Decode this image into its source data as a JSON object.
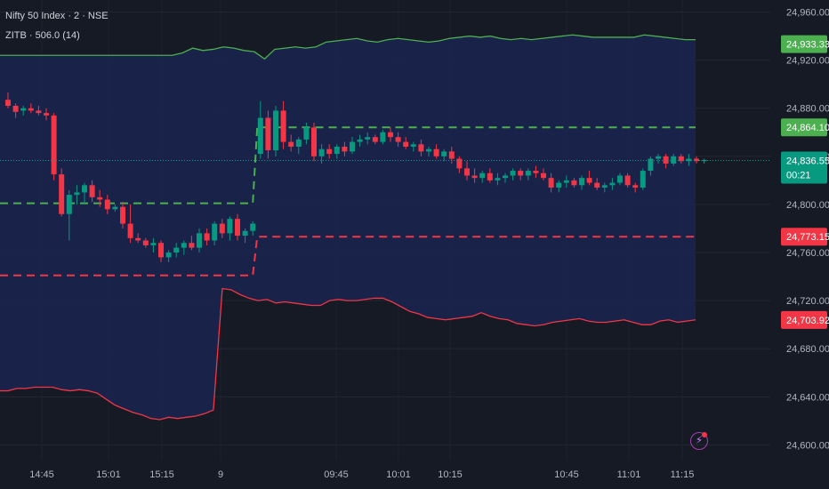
{
  "header": {
    "symbol": "Nifty 50 Index · 2 · NSE",
    "indicator": "ZITB · 506.0 (14)"
  },
  "colors": {
    "background": "#161a25",
    "band_fill": "#1a2550",
    "bull": "#089981",
    "bear": "#f23645",
    "upper_band": "#4caf50",
    "lower_band": "#f23645",
    "mid_line": "#4caf50",
    "last_price": "#089981",
    "axis_text": "#b2b5be"
  },
  "icons": {
    "alert": "lightning-icon"
  },
  "chart_data": {
    "type": "candlestick",
    "x_ticks": [
      "14:45",
      "15:01",
      "15:15",
      "9",
      "09:45",
      "10:01",
      "10:15",
      "10:45",
      "11:01",
      "11:15"
    ],
    "y_ticks": [
      24600,
      24640,
      24680,
      24720,
      24760,
      24800,
      24840,
      24880,
      24920,
      24960
    ],
    "y_tick_labels": [
      "24,600.00",
      "24,640.00",
      "24,680.00",
      "24,720.00",
      "24,760.00",
      "24,800.00",
      "24,840.00",
      "24,880.00",
      "24,920.00",
      "24,960.00"
    ],
    "ylim": [
      24587,
      24970
    ],
    "price_labels": [
      {
        "text": "24,933.33",
        "value": 24933.33,
        "kind": "upper"
      },
      {
        "text": "24,864.10",
        "value": 24864.1,
        "kind": "upper"
      },
      {
        "text": "24,836.55",
        "value": 24836.55,
        "kind": "last",
        "countdown": "00:21"
      },
      {
        "text": "24,773.15",
        "value": 24773.15,
        "kind": "lower"
      },
      {
        "text": "24,703.92",
        "value": 24703.92,
        "kind": "lower"
      }
    ],
    "candles": [
      [
        24887,
        24893,
        24880,
        24882
      ],
      [
        24882,
        24884,
        24872,
        24877
      ],
      [
        24878,
        24882,
        24874,
        24880
      ],
      [
        24880,
        24884,
        24876,
        24878
      ],
      [
        24878,
        24882,
        24874,
        24876
      ],
      [
        24876,
        24880,
        24870,
        24874
      ],
      [
        24874,
        24876,
        24820,
        24825
      ],
      [
        24825,
        24830,
        24790,
        24792
      ],
      [
        24792,
        24812,
        24770,
        24808
      ],
      [
        24808,
        24816,
        24800,
        24810
      ],
      [
        24810,
        24818,
        24800,
        24816
      ],
      [
        24816,
        24820,
        24802,
        24806
      ],
      [
        24806,
        24812,
        24798,
        24804
      ],
      [
        24804,
        24808,
        24792,
        24796
      ],
      [
        24796,
        24800,
        24794,
        24798
      ],
      [
        24798,
        24802,
        24780,
        24784
      ],
      [
        24784,
        24800,
        24768,
        24772
      ],
      [
        24772,
        24776,
        24768,
        24770
      ],
      [
        24770,
        24772,
        24764,
        24766
      ],
      [
        24766,
        24772,
        24760,
        24768
      ],
      [
        24768,
        24770,
        24752,
        24756
      ],
      [
        24756,
        24762,
        24752,
        24760
      ],
      [
        24760,
        24768,
        24756,
        24764
      ],
      [
        24764,
        24770,
        24758,
        24768
      ],
      [
        24768,
        24774,
        24762,
        24764
      ],
      [
        24764,
        24780,
        24760,
        24776
      ],
      [
        24776,
        24780,
        24766,
        24770
      ],
      [
        24770,
        24786,
        24766,
        24784
      ],
      [
        24784,
        24788,
        24772,
        24776
      ],
      [
        24776,
        24790,
        24770,
        24788
      ],
      [
        24788,
        24792,
        24770,
        24774
      ],
      [
        24774,
        24780,
        24768,
        24778
      ],
      [
        24778,
        24786,
        24774,
        24784
      ],
      [
        24842,
        24886,
        24838,
        24872
      ],
      [
        24872,
        24878,
        24838,
        24845
      ],
      [
        24845,
        24882,
        24840,
        24878
      ],
      [
        24878,
        24886,
        24846,
        24852
      ],
      [
        24852,
        24858,
        24844,
        24848
      ],
      [
        24848,
        24856,
        24842,
        24854
      ],
      [
        24854,
        24868,
        24850,
        24864
      ],
      [
        24864,
        24868,
        24836,
        24840
      ],
      [
        24840,
        24850,
        24834,
        24846
      ],
      [
        24846,
        24850,
        24838,
        24842
      ],
      [
        24842,
        24850,
        24838,
        24848
      ],
      [
        24848,
        24852,
        24840,
        24844
      ],
      [
        24844,
        24856,
        24842,
        24852
      ],
      [
        24852,
        24858,
        24848,
        24854
      ],
      [
        24854,
        24860,
        24850,
        24856
      ],
      [
        24856,
        24858,
        24850,
        24852
      ],
      [
        24852,
        24862,
        24850,
        24860
      ],
      [
        24860,
        24864,
        24852,
        24856
      ],
      [
        24856,
        24860,
        24848,
        24852
      ],
      [
        24852,
        24856,
        24846,
        24848
      ],
      [
        24848,
        24852,
        24844,
        24850
      ],
      [
        24850,
        24854,
        24840,
        24844
      ],
      [
        24844,
        24848,
        24840,
        24846
      ],
      [
        24846,
        24850,
        24838,
        24840
      ],
      [
        24840,
        24846,
        24836,
        24844
      ],
      [
        24844,
        24848,
        24834,
        24838
      ],
      [
        24838,
        24840,
        24826,
        24830
      ],
      [
        24830,
        24836,
        24820,
        24824
      ],
      [
        24824,
        24830,
        24818,
        24822
      ],
      [
        24822,
        24828,
        24818,
        24826
      ],
      [
        24826,
        24830,
        24818,
        24820
      ],
      [
        24820,
        24826,
        24816,
        24822
      ],
      [
        24822,
        24826,
        24818,
        24824
      ],
      [
        24824,
        24830,
        24820,
        24828
      ],
      [
        24828,
        24830,
        24820,
        24824
      ],
      [
        24824,
        24830,
        24820,
        24828
      ],
      [
        24828,
        24832,
        24822,
        24826
      ],
      [
        24826,
        24830,
        24820,
        24822
      ],
      [
        24822,
        24826,
        24810,
        24814
      ],
      [
        24814,
        24820,
        24810,
        24818
      ],
      [
        24818,
        24824,
        24814,
        24820
      ],
      [
        24820,
        24822,
        24814,
        24816
      ],
      [
        24816,
        24824,
        24812,
        24822
      ],
      [
        24822,
        24828,
        24816,
        24818
      ],
      [
        24818,
        24822,
        24812,
        24814
      ],
      [
        24814,
        24818,
        24810,
        24816
      ],
      [
        24816,
        24822,
        24812,
        24818
      ],
      [
        24818,
        24826,
        24816,
        24824
      ],
      [
        24824,
        24826,
        24814,
        24816
      ],
      [
        24816,
        24818,
        24810,
        24814
      ],
      [
        24814,
        24830,
        24812,
        24828
      ],
      [
        24828,
        24840,
        24824,
        24838
      ],
      [
        24838,
        24842,
        24834,
        24840
      ],
      [
        24840,
        24842,
        24830,
        24834
      ],
      [
        24834,
        24842,
        24832,
        24840
      ],
      [
        24840,
        24842,
        24834,
        24836
      ],
      [
        24836,
        24842,
        24832,
        24838
      ],
      [
        24838,
        24840,
        24834,
        24836
      ],
      [
        24836,
        24838,
        24834,
        24837
      ]
    ],
    "upper_band": [
      24924,
      24924,
      24924,
      24924,
      24924,
      24924,
      24924,
      24924,
      24924,
      24924,
      24924,
      24924,
      24924,
      24924,
      24924,
      24924,
      24924,
      24926,
      24930,
      24928,
      24929,
      24931,
      24930,
      24928,
      24927,
      24921,
      24929,
      24930,
      24931,
      24930,
      24931,
      24935,
      24936,
      24937,
      24938,
      24936,
      24935,
      24937,
      24938,
      24937,
      24936,
      24935,
      24936,
      24938,
      24939,
      24940,
      24939,
      24940,
      24938,
      24937,
      24938,
      24937,
      24938,
      24939,
      24940,
      24941,
      24940,
      24939,
      24939,
      24939,
      24939,
      24939,
      24941,
      24940,
      24939,
      24938,
      24937,
      24937
    ],
    "lower_band": [
      24645,
      24647,
      24647,
      24648,
      24648,
      24648,
      24646,
      24645,
      24646,
      24645,
      24643,
      24638,
      24633,
      24630,
      24627,
      24625,
      24622,
      24621,
      24623,
      24622,
      24623,
      24624,
      24626,
      24629,
      24730,
      24729,
      24725,
      24722,
      24720,
      24721,
      24718,
      24719,
      24718,
      24717,
      24716,
      24716,
      24720,
      24721,
      24720,
      24720,
      24721,
      24722,
      24722,
      24719,
      24715,
      24711,
      24709,
      24706,
      24705,
      24704,
      24705,
      24706,
      24707,
      24710,
      24707,
      24705,
      24704,
      24701,
      24700,
      24699,
      24700,
      24702,
      24703,
      24704,
      24705,
      24703,
      24702,
      24702,
      24703,
      24704,
      24702,
      24700,
      24700,
      24703,
      24704,
      24702,
      24703,
      24704
    ],
    "mid_upper_steps": [
      {
        "to_index": 32,
        "value": 24801
      },
      {
        "to_index": 90,
        "value": 24864.1
      }
    ],
    "mid_lower_steps": [
      {
        "to_index": 32,
        "value": 24741
      },
      {
        "to_index": 90,
        "value": 24773.15
      }
    ]
  }
}
